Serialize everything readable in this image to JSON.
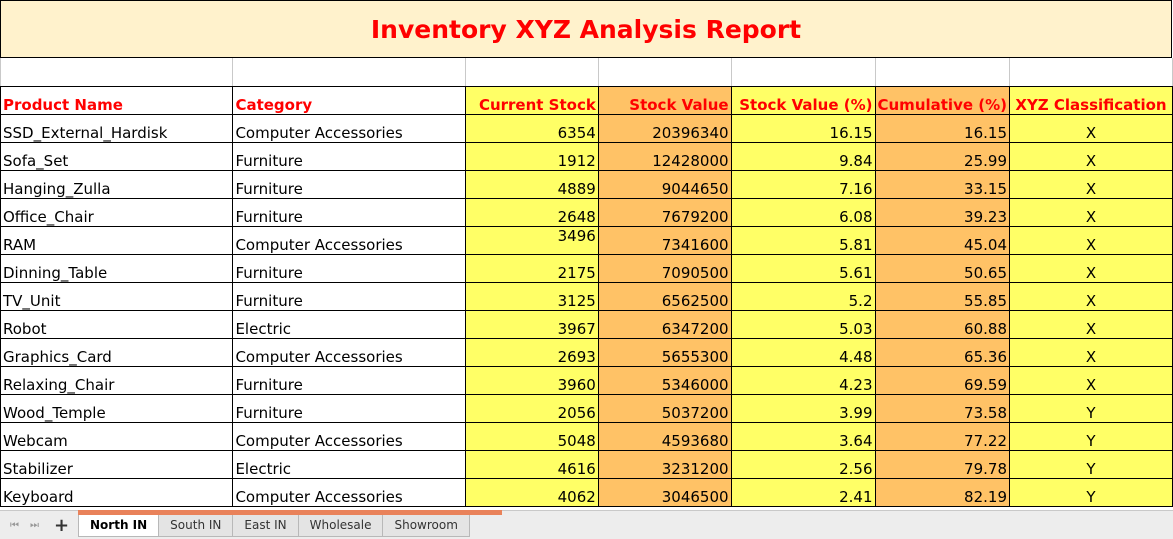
{
  "title": "Inventory XYZ Analysis Report",
  "headers": {
    "name": "Product Name",
    "category": "Category",
    "stock": "Current Stock",
    "value": "Stock Value",
    "pct": "Stock Value (%)",
    "cum": "Cumulative (%)",
    "xyz": "XYZ Classification"
  },
  "rows": [
    {
      "name": "SSD_External_Hardisk",
      "category": "Computer Accessories",
      "stock": "6354",
      "value": "20396340",
      "pct": "16.15",
      "cum": "16.15",
      "xyz": "X"
    },
    {
      "name": "Sofa_Set",
      "category": "Furniture",
      "stock": "1912",
      "value": "12428000",
      "pct": "9.84",
      "cum": "25.99",
      "xyz": "X"
    },
    {
      "name": "Hanging_Zulla",
      "category": "Furniture",
      "stock": "4889",
      "value": "9044650",
      "pct": "7.16",
      "cum": "33.15",
      "xyz": "X"
    },
    {
      "name": "Office_Chair",
      "category": "Furniture",
      "stock": "2648",
      "value": "7679200",
      "pct": "6.08",
      "cum": "39.23",
      "xyz": "X"
    },
    {
      "name": "RAM",
      "category": "Computer Accessories",
      "stock": "3496",
      "value": "7341600",
      "pct": "5.81",
      "cum": "45.04",
      "xyz": "X"
    },
    {
      "name": "Dinning_Table",
      "category": "Furniture",
      "stock": "2175",
      "value": "7090500",
      "pct": "5.61",
      "cum": "50.65",
      "xyz": "X"
    },
    {
      "name": "TV_Unit",
      "category": "Furniture",
      "stock": "3125",
      "value": "6562500",
      "pct": "5.2",
      "cum": "55.85",
      "xyz": "X"
    },
    {
      "name": "Robot",
      "category": "Electric",
      "stock": "3967",
      "value": "6347200",
      "pct": "5.03",
      "cum": "60.88",
      "xyz": "X"
    },
    {
      "name": "Graphics_Card",
      "category": "Computer Accessories",
      "stock": "2693",
      "value": "5655300",
      "pct": "4.48",
      "cum": "65.36",
      "xyz": "X"
    },
    {
      "name": "Relaxing_Chair",
      "category": "Furniture",
      "stock": "3960",
      "value": "5346000",
      "pct": "4.23",
      "cum": "69.59",
      "xyz": "X"
    },
    {
      "name": "Wood_Temple",
      "category": "Furniture",
      "stock": "2056",
      "value": "5037200",
      "pct": "3.99",
      "cum": "73.58",
      "xyz": "Y"
    },
    {
      "name": "Webcam",
      "category": "Computer Accessories",
      "stock": "5048",
      "value": "4593680",
      "pct": "3.64",
      "cum": "77.22",
      "xyz": "Y"
    },
    {
      "name": "Stabilizer",
      "category": "Electric",
      "stock": "4616",
      "value": "3231200",
      "pct": "2.56",
      "cum": "79.78",
      "xyz": "Y"
    },
    {
      "name": "Keyboard",
      "category": "Computer Accessories",
      "stock": "4062",
      "value": "3046500",
      "pct": "2.41",
      "cum": "82.19",
      "xyz": "Y"
    }
  ],
  "sheet_tabs": [
    {
      "label": "North IN",
      "active": true
    },
    {
      "label": "South IN",
      "active": false
    },
    {
      "label": "East IN",
      "active": false
    },
    {
      "label": "Wholesale",
      "active": false
    },
    {
      "label": "Showroom",
      "active": false
    }
  ],
  "add_sheet_label": "+",
  "nav_first": "⏮",
  "nav_last": "⏭",
  "colors": {
    "title_bg": "#fff2cc",
    "title_text": "#ff0000",
    "header_text": "#ff0000",
    "stock_fill": "#ffff66",
    "value_fill": "#ffc266"
  }
}
